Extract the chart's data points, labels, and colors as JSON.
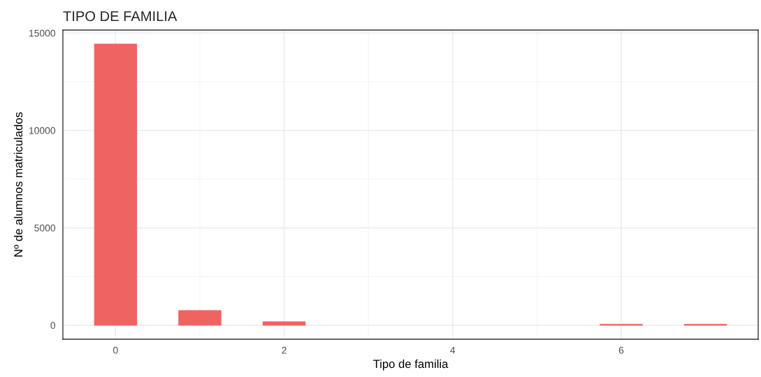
{
  "chart_data": {
    "type": "bar",
    "title": "TIPO DE FAMILIA",
    "xlabel": "Tipo de familia",
    "ylabel": "Nº de alumnos matriculados",
    "x": [
      0,
      1,
      2,
      6,
      7
    ],
    "values": [
      14430,
      750,
      180,
      40,
      40
    ],
    "color": "#ef6363",
    "xlim": [
      -0.625,
      7.625
    ],
    "xticks": [
      0,
      2,
      4,
      6
    ],
    "ylim": [
      -720,
      15150
    ],
    "yticks": [
      0,
      5000,
      10000,
      15000
    ],
    "grid": true
  }
}
